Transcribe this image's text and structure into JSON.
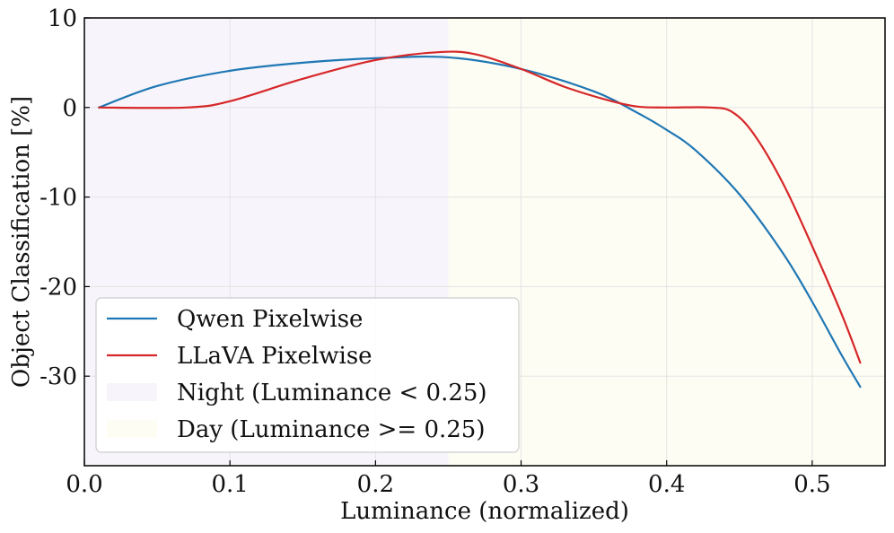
{
  "chart_data": {
    "type": "line",
    "title": "",
    "xlabel": "Luminance (normalized)",
    "ylabel": "Object Classification [%]",
    "xlim": [
      0.0,
      0.55
    ],
    "ylim": [
      -40,
      10
    ],
    "xticks": [
      0.0,
      0.1,
      0.2,
      0.3,
      0.4,
      0.5
    ],
    "xtick_labels": [
      "0.0",
      "0.1",
      "0.2",
      "0.3",
      "0.4",
      "0.5"
    ],
    "yticks": [
      10,
      0,
      -10,
      -20,
      -30
    ],
    "ytick_labels": [
      "10",
      "0",
      "-10",
      "-20",
      "-30"
    ],
    "grid": true,
    "legend_position": "lower-left",
    "regions": [
      {
        "name": "Night (Luminance < 0.25)",
        "x_start": 0.0,
        "x_end": 0.25,
        "color": "#f7f5fb"
      },
      {
        "name": "Day (Luminance >= 0.25)",
        "x_start": 0.25,
        "x_end": 0.55,
        "color": "#fefdf4"
      }
    ],
    "series": [
      {
        "name": "Qwen Pixelwise",
        "color": "#1f77b4",
        "points": [
          [
            0.01,
            0.0
          ],
          [
            0.05,
            2.4
          ],
          [
            0.1,
            4.1
          ],
          [
            0.15,
            5.0
          ],
          [
            0.2,
            5.5
          ],
          [
            0.25,
            5.6
          ],
          [
            0.3,
            4.3
          ],
          [
            0.35,
            1.8
          ],
          [
            0.38,
            -0.6
          ],
          [
            0.4,
            -2.5
          ],
          [
            0.42,
            -4.8
          ],
          [
            0.45,
            -9.7
          ],
          [
            0.48,
            -16.3
          ],
          [
            0.5,
            -21.7
          ],
          [
            0.52,
            -27.6
          ],
          [
            0.533,
            -31.2
          ]
        ]
      },
      {
        "name": "LLaVA Pixelwise",
        "color": "#d62728",
        "points": [
          [
            0.01,
            0.0
          ],
          [
            0.07,
            0.0
          ],
          [
            0.1,
            0.7
          ],
          [
            0.15,
            3.2
          ],
          [
            0.2,
            5.3
          ],
          [
            0.245,
            6.2
          ],
          [
            0.27,
            5.9
          ],
          [
            0.3,
            4.3
          ],
          [
            0.33,
            2.3
          ],
          [
            0.36,
            0.8
          ],
          [
            0.38,
            0.1
          ],
          [
            0.4,
            0.0
          ],
          [
            0.43,
            0.0
          ],
          [
            0.445,
            -0.5
          ],
          [
            0.46,
            -3.0
          ],
          [
            0.48,
            -8.5
          ],
          [
            0.5,
            -15.5
          ],
          [
            0.52,
            -23.0
          ],
          [
            0.533,
            -28.5
          ]
        ]
      }
    ]
  }
}
